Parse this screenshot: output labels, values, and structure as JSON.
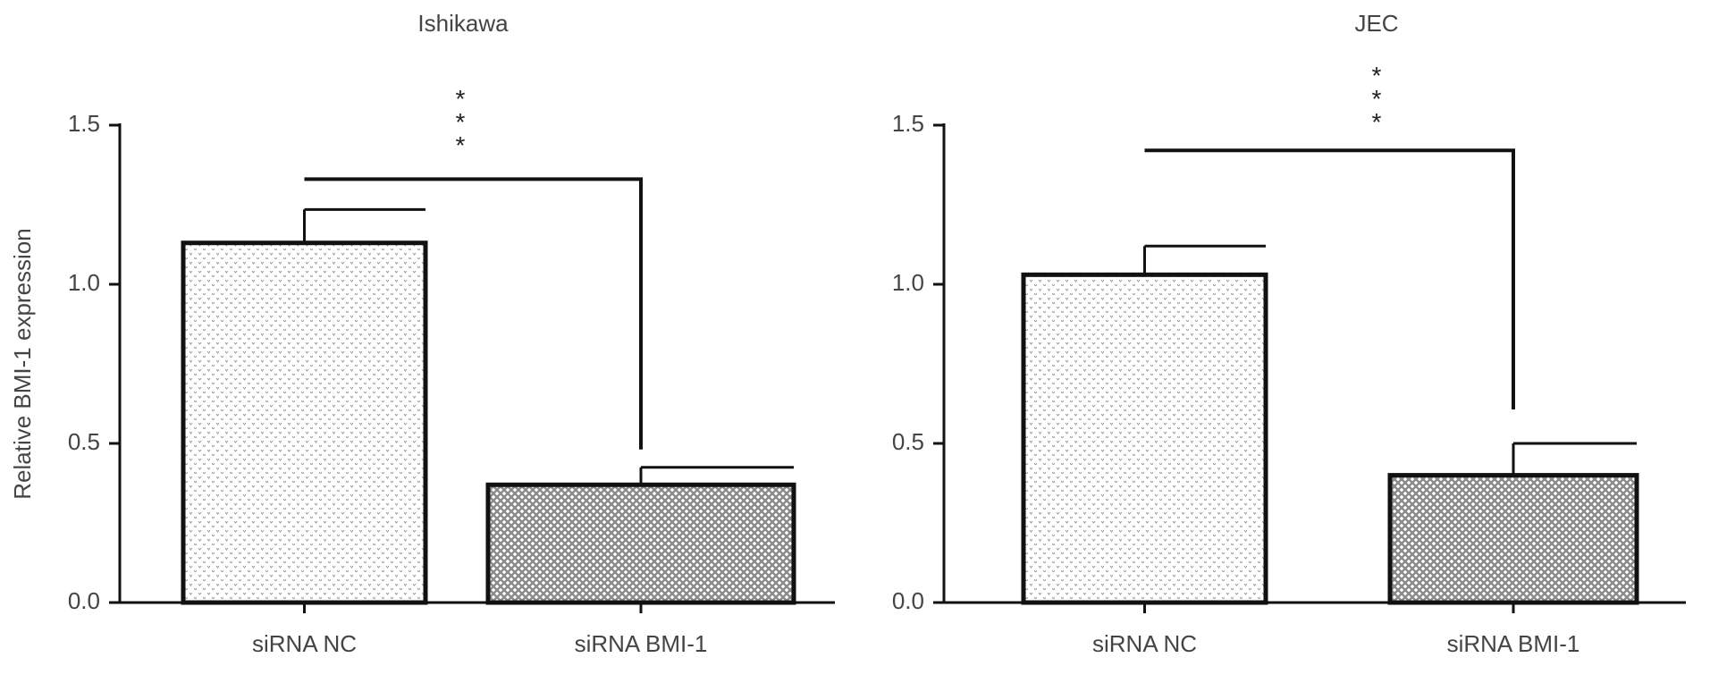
{
  "chart_data": [
    {
      "type": "bar",
      "title": "Ishikawa",
      "y_label": "Relative BMI-1 expression",
      "categories": [
        "siRNA NC",
        "siRNA BMI-1"
      ],
      "values": [
        1.13,
        0.37
      ],
      "errors": [
        0.105,
        0.055
      ],
      "colors": [
        "#e6e6e6",
        "#8a8a8a"
      ],
      "annotation": "***",
      "ylim": [
        0,
        1.5
      ],
      "yticks": [
        {
          "value": 0,
          "label": "0.0"
        },
        0.5,
        {
          "value": 1,
          "label": "1.0"
        },
        1.5
      ]
    },
    {
      "type": "bar",
      "title": "JEC",
      "categories": [
        "siRNA NC",
        "siRNA BMI-1"
      ],
      "values": [
        1.03,
        0.4
      ],
      "errors": [
        0.09,
        0.1
      ],
      "colors": [
        "#e6e6e6",
        "#8a8a8a"
      ],
      "annotation": "***",
      "ylim": [
        0,
        1.5
      ],
      "yticks": [
        {
          "value": 0,
          "label": "0.0"
        },
        0.5,
        {
          "value": 1,
          "label": "1.0"
        },
        1.5
      ]
    }
  ]
}
